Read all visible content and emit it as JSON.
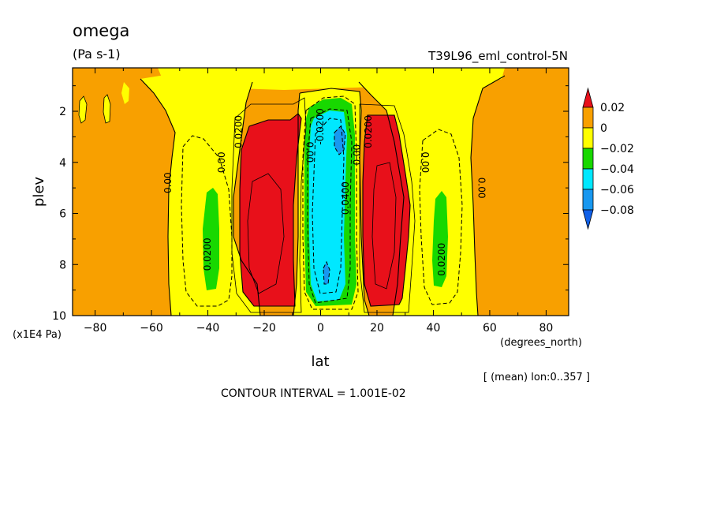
{
  "chart_data": {
    "type": "heatmap",
    "title": "omega",
    "subtitle": "(Pa s-1)",
    "run_label": "T39L96_eml_control-5N",
    "xlabel": "lat",
    "x_units": "(degrees_north)",
    "ylabel": "plev",
    "y_units": "(x1E4 Pa)",
    "xlim": [
      -88,
      88
    ],
    "ylim": [
      10,
      0.3
    ],
    "x_ticks": [
      -80,
      -60,
      -40,
      -20,
      0,
      20,
      40,
      60,
      80
    ],
    "y_ticks": [
      2,
      4,
      6,
      8,
      10
    ],
    "y_inverted": true,
    "averaging_note": "[ (mean) lon:0..357 ]",
    "contour_interval": "CONTOUR INTERVAL = 1.001E-02",
    "colorbar": {
      "labels": [
        "0.02",
        "0",
        "−0.02",
        "−0.04",
        "−0.06",
        "−0.08"
      ],
      "levels": [
        0.02,
        0,
        -0.02,
        -0.04,
        -0.06,
        -0.08
      ],
      "bands": [
        {
          "range": [
            0.02,
            0.04
          ],
          "color": "#e8101a"
        },
        {
          "range": [
            0,
            0.02
          ],
          "color": "#f8a000"
        },
        {
          "range": [
            -0.02,
            0
          ],
          "color": "#ffff00"
        },
        {
          "range": [
            -0.04,
            -0.02
          ],
          "color": "#18d800"
        },
        {
          "range": [
            -0.06,
            -0.04
          ],
          "color": "#00e8ff"
        },
        {
          "range": [
            -0.08,
            -0.06
          ],
          "color": "#1898f0"
        },
        {
          "range": [
            -0.1,
            -0.08
          ],
          "color": "#1060e8"
        }
      ]
    },
    "regions": [
      {
        "name": "background",
        "value_band": "0..0.02",
        "color": "#f8a000"
      },
      {
        "name": "sh-subtropical-descent",
        "lat_range": [
          -32,
          -6
        ],
        "plev_range": [
          2,
          9.5
        ],
        "value_band": ">0.02",
        "color": "#e8101a"
      },
      {
        "name": "nh-subtropical-descent",
        "lat_range": [
          17,
          33
        ],
        "plev_range": [
          2,
          9.5
        ],
        "value_band": ">0.02",
        "color": "#e8101a"
      },
      {
        "name": "itcz-ascent",
        "lat_range": [
          -4,
          12
        ],
        "plev_range": [
          1.8,
          9.7
        ],
        "value_band": "-0.06..-0.04",
        "color": "#00e8ff"
      },
      {
        "name": "sh-midlatitude-ascent",
        "lat_range": [
          -42,
          -38
        ],
        "plev_range": [
          4.8,
          9
        ],
        "value_band": "-0.04..-0.02",
        "color": "#18d800"
      },
      {
        "name": "nh-midlatitude-ascent",
        "lat_range": [
          40,
          45
        ],
        "plev_range": [
          5,
          8.8
        ],
        "value_band": "-0.04..-0.02",
        "color": "#18d800"
      }
    ],
    "contour_labels": [
      {
        "text": "0.00",
        "lat": -53,
        "plev": 4.8,
        "angle": -90
      },
      {
        "text": "0.00",
        "lat": -34,
        "plev": 4.0,
        "angle": -90
      },
      {
        "text": "0.0200",
        "lat": -39,
        "plev": 7.6,
        "angle": -90
      },
      {
        "text": "0.0200",
        "lat": -28,
        "plev": 2.8,
        "angle": -90
      },
      {
        "text": "0.00",
        "lat": -5,
        "plev": 3.6,
        "angle": 90
      },
      {
        "text": "-0.0200",
        "lat": 1,
        "plev": 2.6,
        "angle": -90
      },
      {
        "text": "0.0400",
        "lat": 10,
        "plev": 5.4,
        "angle": -90
      },
      {
        "text": "0.00",
        "lat": 14,
        "plev": 3.7,
        "angle": -90
      },
      {
        "text": "0.0200",
        "lat": 18,
        "plev": 2.8,
        "angle": -90
      },
      {
        "text": "0.00",
        "lat": 36,
        "plev": 4.0,
        "angle": 90
      },
      {
        "text": "0.0200",
        "lat": 44,
        "plev": 7.8,
        "angle": -90
      },
      {
        "text": "0.00",
        "lat": 56,
        "plev": 5.0,
        "angle": 90
      }
    ]
  }
}
